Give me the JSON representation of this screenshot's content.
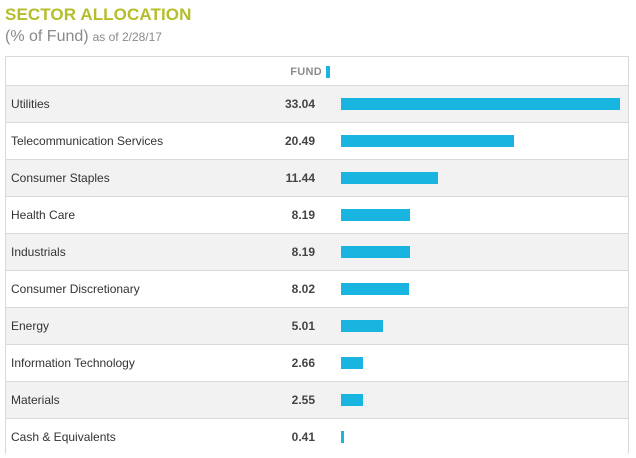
{
  "header": {
    "title": "SECTOR ALLOCATION",
    "unit_label": "(% of Fund)",
    "as_of": "as of 2/28/17"
  },
  "colors": {
    "title": "#b5bd2a",
    "bar": "#1ab4e1"
  },
  "chart_data": {
    "type": "bar",
    "orientation": "horizontal",
    "title": "SECTOR ALLOCATION",
    "subtitle": "(% of Fund) as of 2/28/17",
    "legend": "top",
    "series": [
      {
        "name": "FUND",
        "values": [
          33.04,
          20.49,
          11.44,
          8.19,
          8.19,
          8.02,
          5.01,
          2.66,
          2.55,
          0.41
        ]
      }
    ],
    "categories": [
      "Utilities",
      "Telecommunication Services",
      "Consumer Staples",
      "Health Care",
      "Industrials",
      "Consumer Discretionary",
      "Energy",
      "Information Technology",
      "Materials",
      "Cash & Equivalents"
    ],
    "value_labels": [
      "33.04",
      "20.49",
      "11.44",
      "8.19",
      "8.19",
      "8.02",
      "5.01",
      "2.66",
      "2.55",
      "0.41"
    ],
    "xlim": [
      0,
      33.04
    ],
    "grid": false
  }
}
